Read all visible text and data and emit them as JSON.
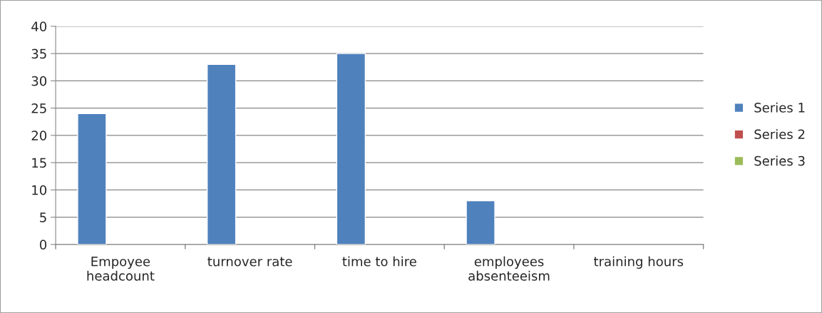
{
  "chart_data": {
    "type": "bar",
    "categories": [
      "Empoyee\nheadcount",
      "turnover rate",
      "time to hire",
      "employees\nabsenteeism",
      "training hours"
    ],
    "series": [
      {
        "name": "Series 1",
        "color": "#4f81bd",
        "values": [
          24,
          33,
          35,
          8,
          null
        ]
      },
      {
        "name": "Series 2",
        "color": "#c0504d",
        "values": [
          null,
          null,
          null,
          null,
          null
        ]
      },
      {
        "name": "Series 3",
        "color": "#9bbb59",
        "values": [
          null,
          null,
          null,
          null,
          null
        ]
      }
    ],
    "ylim": [
      0,
      40
    ],
    "yticks": [
      0,
      5,
      10,
      15,
      20,
      25,
      30,
      35,
      40
    ],
    "grid": "y",
    "legend": "right"
  }
}
